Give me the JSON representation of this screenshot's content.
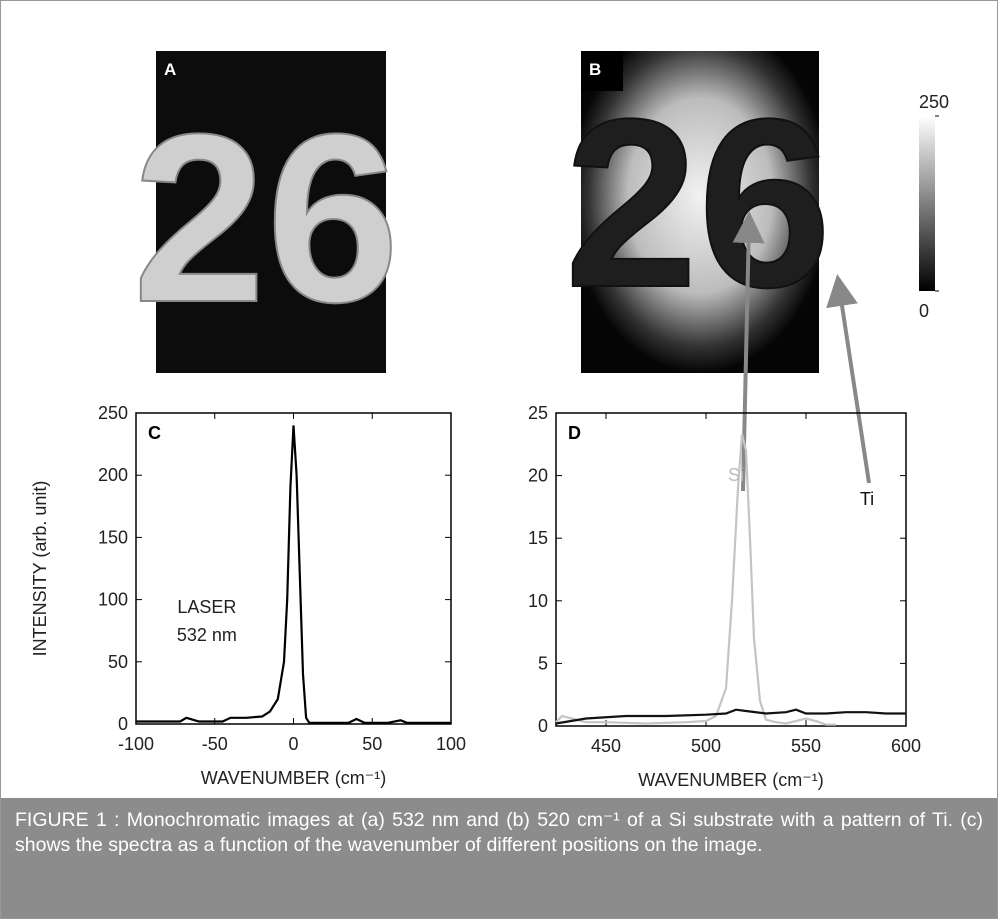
{
  "images": [
    {
      "label": "A",
      "content": "26"
    },
    {
      "label": "B",
      "content": "26"
    }
  ],
  "colorbar": {
    "lim": [
      0,
      250
    ],
    "ticks": [
      0,
      250
    ]
  },
  "chart_data": [
    {
      "type": "line",
      "label": "C",
      "ylabel": "INTENSITY (arb. unit)",
      "xlabel": "WAVENUMBER (cm⁻¹)",
      "annotations": [
        "LASER",
        "532 nm"
      ],
      "xlim": [
        -100,
        100
      ],
      "xticks": [
        -100,
        -50,
        0,
        50,
        100
      ],
      "ylim": [
        0,
        250
      ],
      "yticks": [
        0,
        50,
        100,
        150,
        200,
        250
      ],
      "series": [
        {
          "color": "#000000",
          "x": [
            -100,
            -80,
            -72,
            -68,
            -60,
            -45,
            -40,
            -30,
            -20,
            -15,
            -10,
            -6,
            -4,
            -2,
            0,
            2,
            4,
            6,
            8,
            10,
            20,
            35,
            40,
            45,
            60,
            68,
            72,
            80,
            100
          ],
          "values": [
            2,
            2,
            2,
            5,
            2,
            2,
            5,
            5,
            6,
            10,
            20,
            50,
            100,
            190,
            240,
            200,
            120,
            40,
            5,
            1,
            1,
            1,
            4,
            1,
            1,
            3,
            1,
            1,
            1
          ]
        }
      ]
    },
    {
      "type": "line",
      "label": "D",
      "xlabel": "WAVENUMBER (cm⁻¹)",
      "xlim": [
        425,
        600
      ],
      "xticks": [
        450,
        500,
        550,
        600
      ],
      "ylim": [
        0,
        25
      ],
      "yticks": [
        0,
        5,
        10,
        15,
        20,
        25
      ],
      "series": [
        {
          "name": "Si",
          "color": "#c4c4c4",
          "x": [
            425,
            428,
            440,
            450,
            470,
            490,
            500,
            505,
            510,
            513,
            516,
            518,
            520,
            522,
            524,
            527,
            530,
            535,
            540,
            550,
            555,
            560,
            565
          ],
          "values": [
            0.3,
            0.8,
            0.3,
            0.3,
            0.2,
            0.3,
            0.4,
            0.8,
            3,
            10,
            19,
            23.3,
            22,
            15,
            7,
            2,
            0.5,
            0.3,
            0.2,
            0.6,
            0.4,
            0.1,
            0.1
          ]
        },
        {
          "name": "Ti",
          "color": "#111111",
          "x": [
            425,
            440,
            460,
            480,
            500,
            510,
            515,
            520,
            530,
            540,
            545,
            550,
            560,
            570,
            580,
            590,
            600
          ],
          "values": [
            0.2,
            0.6,
            0.8,
            0.8,
            0.9,
            1.0,
            1.3,
            1.2,
            1.0,
            1.1,
            1.3,
            1.0,
            1.0,
            1.1,
            1.1,
            1.0,
            1.0
          ]
        }
      ]
    }
  ],
  "caption": "FIGURE 1 : Monochromatic images at (a) 532 nm and (b) 520 cm⁻¹ of a Si substrate with a pattern of Ti. (c) shows the spectra as a function of the wavenumber of different positions on the image."
}
